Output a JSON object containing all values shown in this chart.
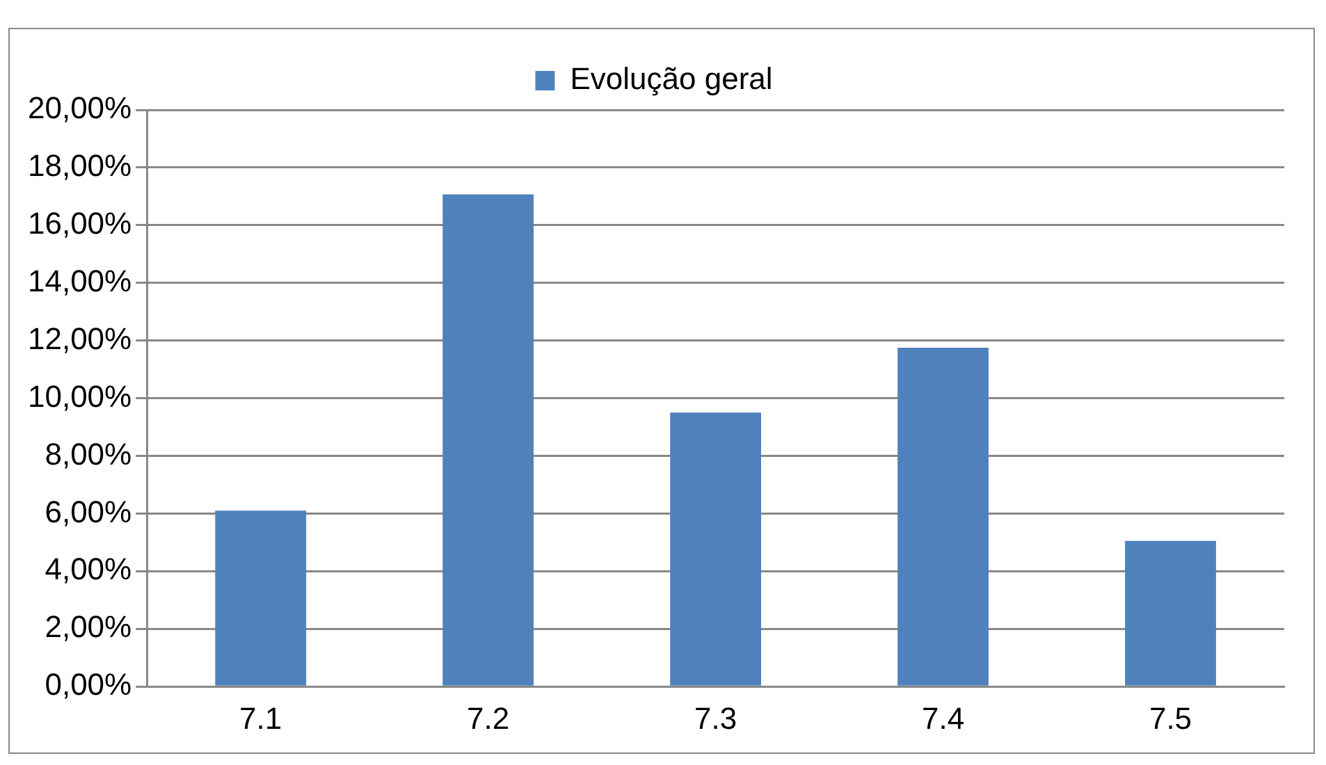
{
  "chart_data": {
    "type": "bar",
    "categories": [
      "7.1",
      "7.2",
      "7.3",
      "7.4",
      "7.5"
    ],
    "series": [
      {
        "name": "Evolução geral",
        "color": "#4f81bd",
        "values": [
          6.1,
          17.07,
          9.5,
          11.75,
          5.05
        ]
      }
    ],
    "ylim": [
      0,
      20
    ],
    "yticks": [
      {
        "value": 0,
        "label": "0,00%"
      },
      {
        "value": 2,
        "label": "2,00%"
      },
      {
        "value": 4,
        "label": "4,00%"
      },
      {
        "value": 6,
        "label": "6,00%"
      },
      {
        "value": 8,
        "label": "8,00%"
      },
      {
        "value": 10,
        "label": "10,00%"
      },
      {
        "value": 12,
        "label": "12,00%"
      },
      {
        "value": 14,
        "label": "14,00%"
      },
      {
        "value": 16,
        "label": "16,00%"
      },
      {
        "value": 18,
        "label": "18,00%"
      },
      {
        "value": 20,
        "label": "20,00%"
      }
    ],
    "grid": "y",
    "legend": "top"
  }
}
